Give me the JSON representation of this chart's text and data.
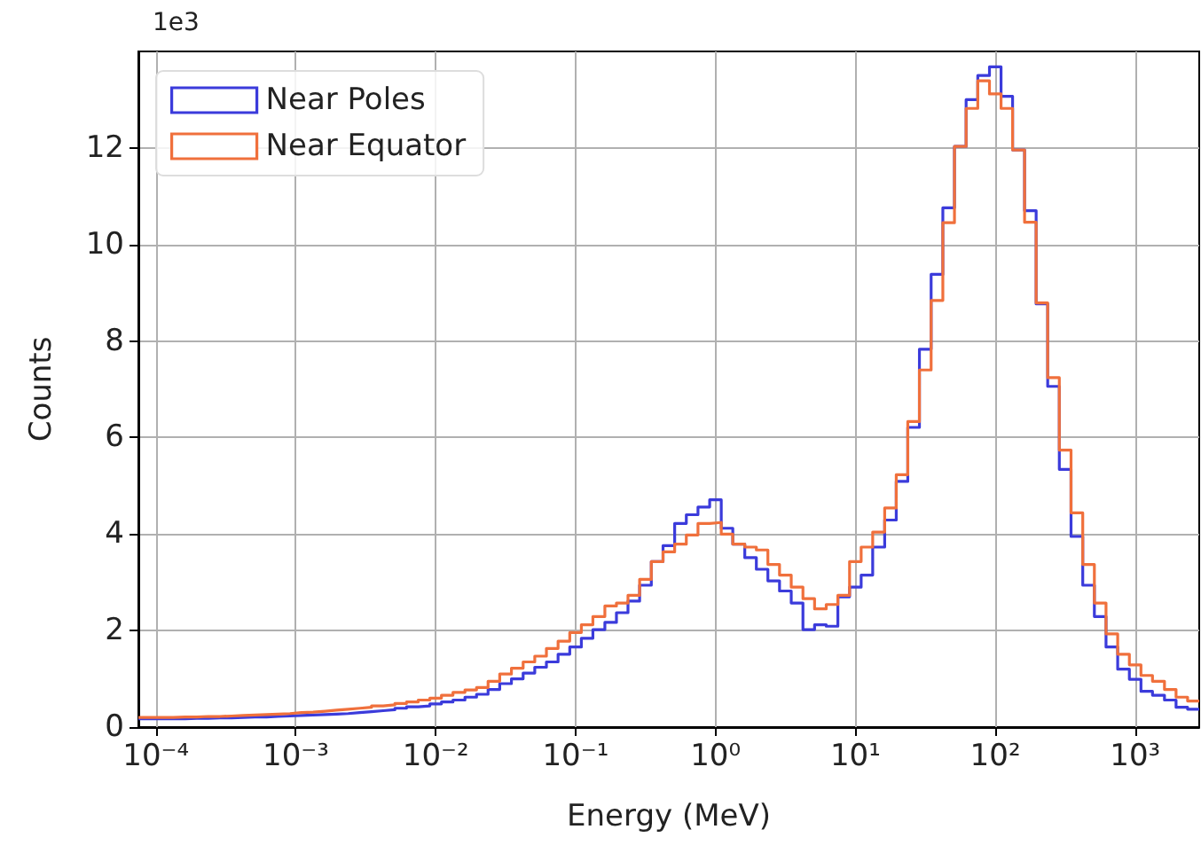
{
  "chart_data": {
    "type": "histogram",
    "xlabel": "Energy (MeV)",
    "ylabel": "Counts",
    "annotations": [
      "1e3"
    ],
    "log": "x",
    "grid": true,
    "legend": "top left",
    "xlim": [
      7.5e-05,
      2870
    ],
    "xticks": [
      {
        "value": 0.0001,
        "label": "10⁻⁴"
      },
      {
        "value": 0.001,
        "label": "10⁻³"
      },
      {
        "value": 0.01,
        "label": "10⁻²"
      },
      {
        "value": 0.1,
        "label": "10⁻¹"
      },
      {
        "value": 1,
        "label": "10⁰"
      },
      {
        "value": 10,
        "label": "10¹"
      },
      {
        "value": 100,
        "label": "10²"
      },
      {
        "value": 1000,
        "label": "10³"
      }
    ],
    "ylim": [
      0,
      14
    ],
    "yticks": [
      0,
      2,
      4,
      6,
      8,
      10,
      12
    ],
    "bins": [
      7.5e-05,
      9.09e-05,
      0.00011,
      0.000133,
      0.000162,
      0.000196,
      0.000237,
      0.000287,
      0.000348,
      0.000422,
      0.000511,
      0.000619,
      0.00075,
      0.000909,
      0.0011,
      0.00133,
      0.00162,
      0.00196,
      0.00237,
      0.00287,
      0.00348,
      0.00422,
      0.00511,
      0.00619,
      0.0075,
      0.00909,
      0.011,
      0.0133,
      0.0162,
      0.0196,
      0.0237,
      0.0287,
      0.0348,
      0.0422,
      0.0511,
      0.0619,
      0.075,
      0.0909,
      0.11,
      0.133,
      0.162,
      0.196,
      0.237,
      0.287,
      0.348,
      0.422,
      0.511,
      0.619,
      0.75,
      0.909,
      1.1,
      1.33,
      1.62,
      1.96,
      2.37,
      2.87,
      3.48,
      4.22,
      5.11,
      6.19,
      7.5,
      9.09,
      11,
      13.3,
      16.2,
      19.6,
      23.7,
      28.7,
      34.8,
      42.2,
      51.1,
      61.9,
      75,
      90.9,
      110,
      133,
      162,
      196,
      237,
      287,
      348,
      422,
      511,
      619,
      750,
      909,
      1100,
      1330,
      1620,
      1960,
      2370,
      2870
    ],
    "series": [
      {
        "name": "Near Poles",
        "color": "#3b3bdb",
        "values": [
          0.17,
          0.17,
          0.17,
          0.17,
          0.18,
          0.18,
          0.19,
          0.19,
          0.2,
          0.21,
          0.21,
          0.22,
          0.23,
          0.24,
          0.25,
          0.26,
          0.27,
          0.28,
          0.3,
          0.32,
          0.34,
          0.36,
          0.39,
          0.42,
          0.44,
          0.48,
          0.52,
          0.56,
          0.62,
          0.68,
          0.78,
          0.9,
          1.0,
          1.12,
          1.24,
          1.35,
          1.51,
          1.66,
          1.84,
          2.02,
          2.17,
          2.37,
          2.61,
          2.94,
          3.43,
          3.76,
          4.22,
          4.4,
          4.56,
          4.71,
          4.12,
          3.79,
          3.51,
          3.27,
          3.03,
          2.82,
          2.57,
          2.02,
          2.12,
          2.09,
          2.7,
          2.9,
          3.15,
          3.73,
          4.29,
          5.09,
          6.21,
          7.83,
          9.38,
          10.76,
          12.03,
          13.0,
          13.5,
          13.68,
          13.07,
          11.96,
          10.7,
          8.77,
          7.06,
          5.34,
          3.95,
          2.94,
          2.29,
          1.66,
          1.2,
          0.99,
          0.74,
          0.66,
          0.56,
          0.41,
          0.37
        ]
      },
      {
        "name": "Near Equator",
        "color": "#f0703c",
        "values": [
          0.2,
          0.2,
          0.2,
          0.21,
          0.21,
          0.22,
          0.22,
          0.23,
          0.24,
          0.25,
          0.26,
          0.27,
          0.28,
          0.3,
          0.31,
          0.33,
          0.35,
          0.37,
          0.39,
          0.41,
          0.44,
          0.46,
          0.49,
          0.52,
          0.56,
          0.6,
          0.66,
          0.72,
          0.77,
          0.82,
          0.95,
          1.1,
          1.22,
          1.35,
          1.47,
          1.63,
          1.78,
          1.96,
          2.12,
          2.29,
          2.51,
          2.57,
          2.73,
          3.06,
          3.43,
          3.63,
          3.79,
          3.98,
          4.22,
          4.24,
          4.0,
          3.79,
          3.73,
          3.67,
          3.37,
          3.15,
          2.9,
          2.66,
          2.45,
          2.54,
          2.73,
          3.43,
          3.73,
          4.04,
          4.54,
          5.23,
          6.33,
          7.4,
          8.84,
          10.45,
          12.03,
          12.82,
          13.39,
          13.12,
          12.82,
          11.96,
          10.46,
          8.79,
          7.24,
          5.74,
          4.44,
          3.37,
          2.57,
          1.93,
          1.51,
          1.29,
          1.07,
          0.95,
          0.78,
          0.62,
          0.54
        ]
      }
    ]
  }
}
